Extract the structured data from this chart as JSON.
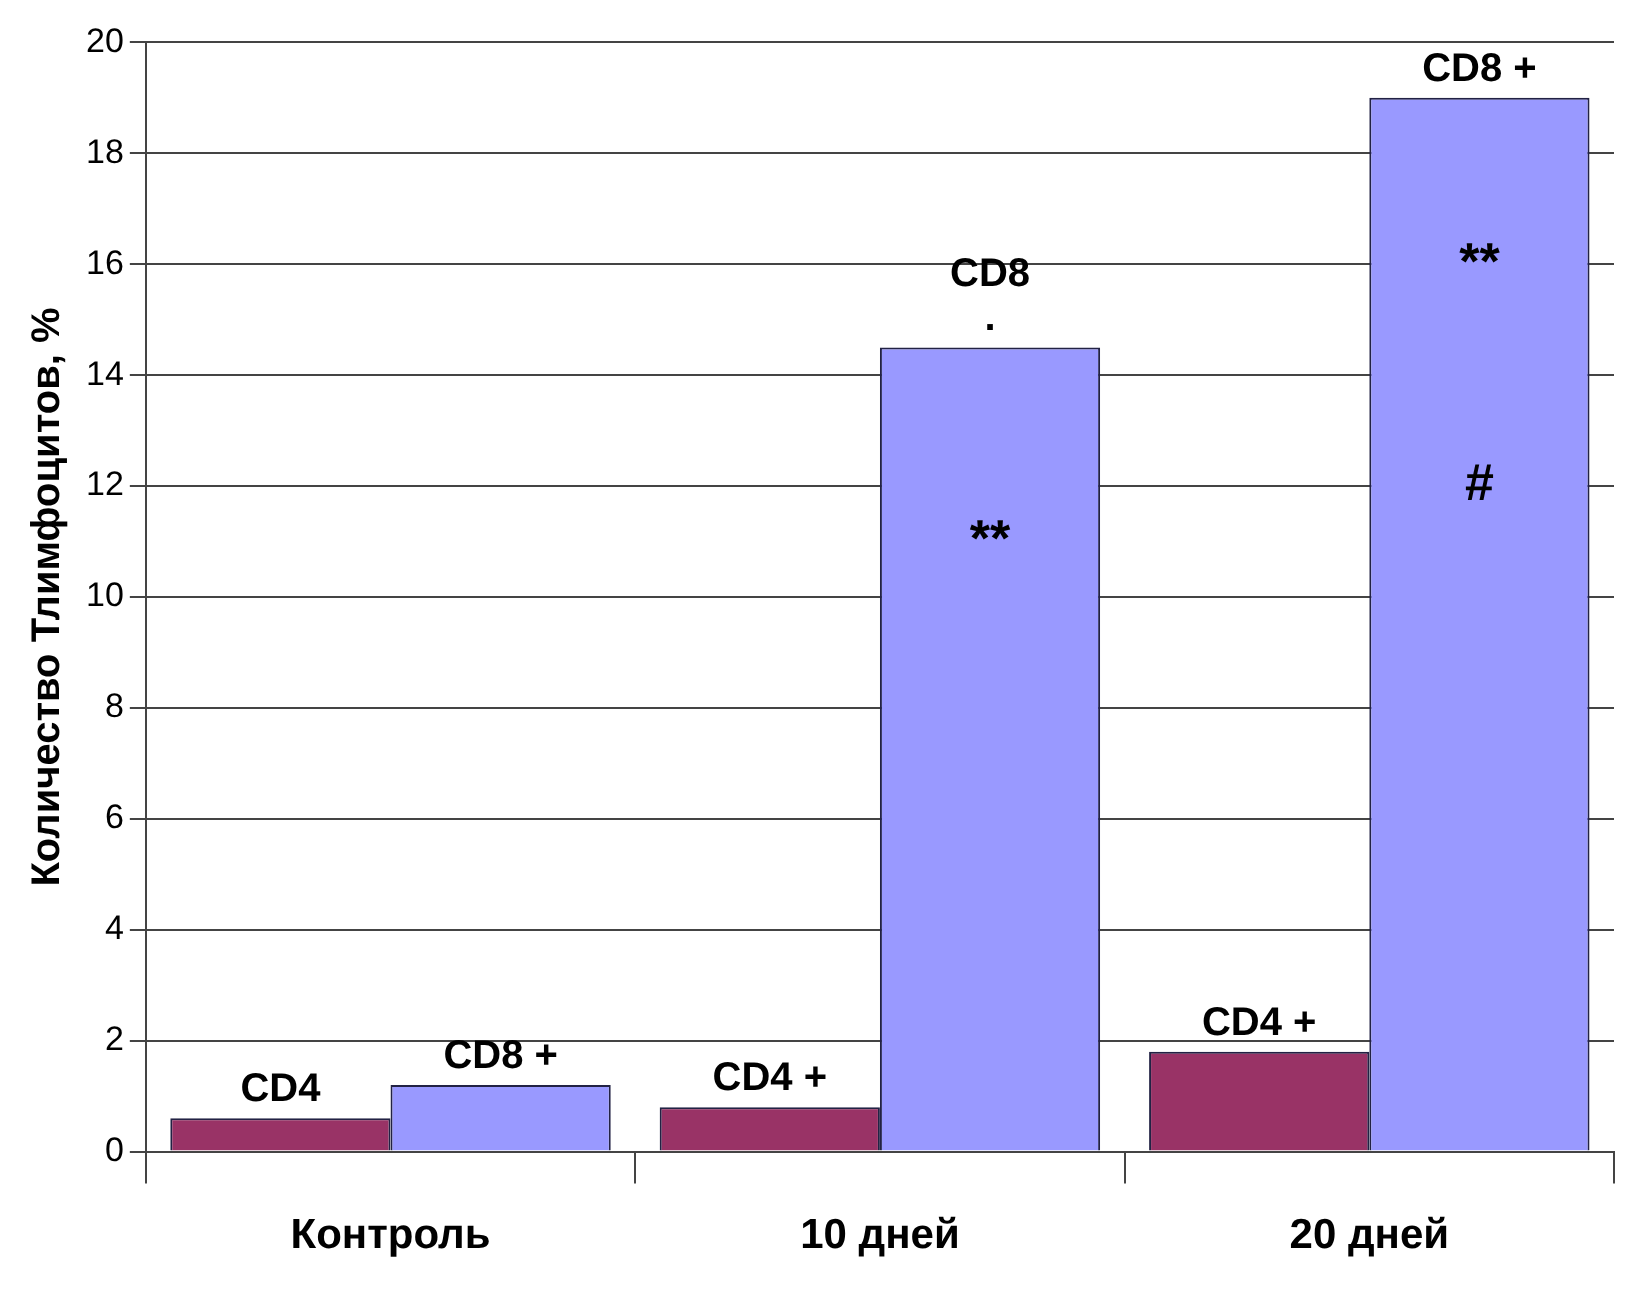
{
  "chart_data": {
    "type": "bar",
    "ylabel": "Количество Тлимфоцитов, %",
    "categories": [
      "Контроль",
      "10 дней",
      "20 дней"
    ],
    "series": [
      {
        "color": "#993366",
        "values": [
          0.6,
          0.8,
          1.8
        ],
        "value_labels": [
          "CD4",
          "CD4 +",
          "CD4 +"
        ]
      },
      {
        "color": "#9999ff",
        "values": [
          1.2,
          14.5,
          19
        ],
        "value_labels": [
          "CD8 +",
          "CD8\n.",
          "CD8 +"
        ]
      }
    ],
    "annotations": [
      {
        "text": "**",
        "x": "10 дней",
        "y": 11
      },
      {
        "text": "**",
        "x": "20 дней",
        "y": 16
      },
      {
        "text": "#",
        "x": "20 дней",
        "y": 12
      }
    ],
    "ylim": [
      0,
      20
    ],
    "yticks": [
      0,
      2,
      4,
      6,
      8,
      10,
      12,
      14,
      16,
      18,
      20
    ],
    "grid": "y",
    "legend": false
  }
}
